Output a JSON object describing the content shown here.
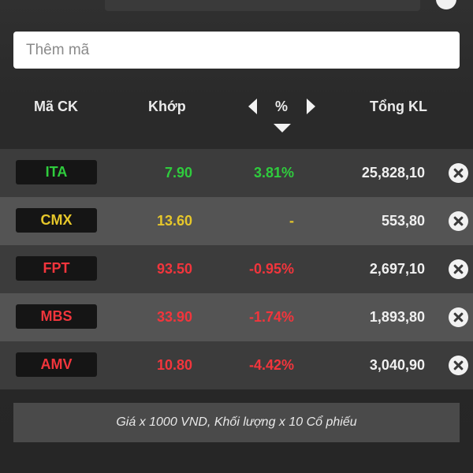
{
  "search": {
    "placeholder": "Thêm mã"
  },
  "header": {
    "code_label": "Mã CK",
    "match_label": "Khớp",
    "pct_label": "%",
    "volume_label": "Tổng KL"
  },
  "rows": [
    {
      "code": "ITA",
      "price": "7.90",
      "pct": "3.81%",
      "volume": "25,828,10",
      "status": "up"
    },
    {
      "code": "CMX",
      "price": "13.60",
      "pct": "-",
      "volume": "553,80",
      "status": "ref"
    },
    {
      "code": "FPT",
      "price": "93.50",
      "pct": "-0.95%",
      "volume": "2,697,10",
      "status": "down"
    },
    {
      "code": "MBS",
      "price": "33.90",
      "pct": "-1.74%",
      "volume": "1,893,80",
      "status": "down"
    },
    {
      "code": "AMV",
      "price": "10.80",
      "pct": "-4.42%",
      "volume": "3,040,90",
      "status": "down"
    }
  ],
  "icons": {
    "remove": "close-circle-icon",
    "prev": "triangle-left-icon",
    "next": "triangle-right-icon",
    "sort": "triangle-down-icon"
  },
  "colors": {
    "up": "#2fcc3d",
    "ref": "#e6c72a",
    "down": "#f2353c"
  },
  "footer": {
    "note": "Giá x 1000 VND, Khối lượng x 10 Cổ phiếu"
  }
}
